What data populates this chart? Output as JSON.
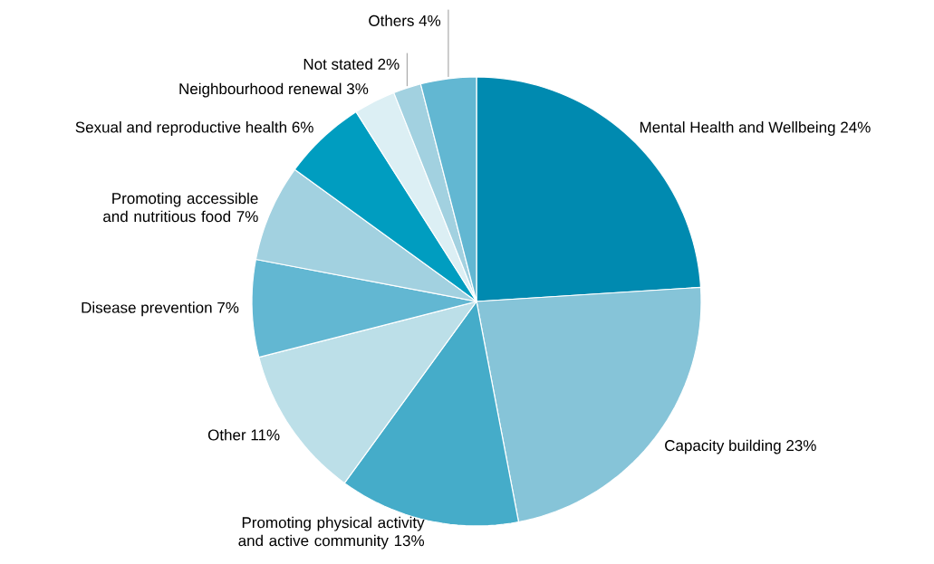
{
  "chart_data": {
    "type": "pie",
    "categories": [
      "Mental Health and Wellbeing",
      "Capacity building",
      "Promoting physical activity and active community",
      "Other",
      "Disease prevention",
      "Promoting accessible and nutritious food",
      "Sexual and reproductive health",
      "Neighbourhood renewal",
      "Not stated",
      "Others"
    ],
    "values": [
      24,
      23,
      13,
      11,
      7,
      7,
      6,
      3,
      2,
      4
    ],
    "colors": [
      "#008ab0",
      "#86c4d8",
      "#45acc9",
      "#bcdfe8",
      "#62b7d2",
      "#a2d1e0",
      "#009dc0",
      "#dceff4",
      "#a2d1e0",
      "#62b7d2"
    ],
    "value_labels": [
      "24%",
      "23%",
      "13%",
      "11%",
      "7%",
      "7%",
      "6%",
      "3%",
      "2%",
      "4%"
    ]
  }
}
